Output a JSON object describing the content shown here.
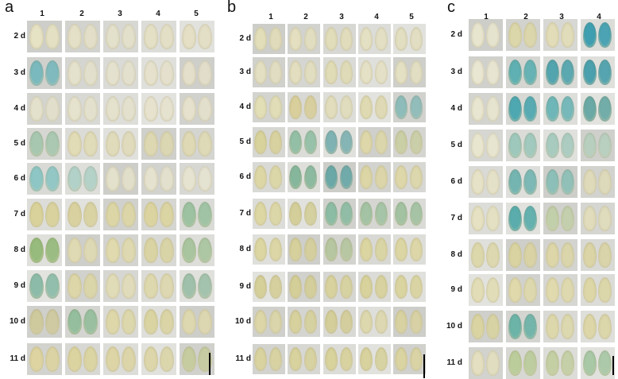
{
  "panels": [
    {
      "letter": "a",
      "columns": [
        "1",
        "2",
        "3",
        "4",
        "5"
      ],
      "rows": [
        "2 d",
        "3 d",
        "4 d",
        "5 d",
        "6 d",
        "7 d",
        "8 d",
        "9 d",
        "10 d",
        "11 d"
      ],
      "leaf_colors": [
        [
          "#e6e2c4",
          "#e4e0c8",
          "#e3e0cb",
          "#e4e0c6",
          "#e4dfc5"
        ],
        [
          "#7ab9bd",
          "#e4e1cc",
          "#e4e1ce",
          "#e5e1cc",
          "#e3dfcb"
        ],
        [
          "#e3e0cc",
          "#e5e2cd",
          "#e4e1cd",
          "#e6e2ce",
          "#e5e1cd"
        ],
        [
          "#a7c7b0",
          "#e1dbb6",
          "#e0dbbb",
          "#ddd8b2",
          "#dfdab5"
        ],
        [
          "#8dc6c4",
          "#b2d1c8",
          "#e3e0cb",
          "#e5e2cf",
          "#e6e3d1"
        ],
        [
          "#d9d29a",
          "#d9d2a0",
          "#dcd6a6",
          "#dcd4a0",
          "#9cc2a2"
        ],
        [
          "#96bb7c",
          "#e0dab4",
          "#e0daae",
          "#dad4a4",
          "#a9c5a0"
        ],
        [
          "#8cbca9",
          "#dcd6a8",
          "#e1dcb8",
          "#ded8ae",
          "#9fc1ab"
        ],
        [
          "#cfca9e",
          "#94be9d",
          "#ddd7aa",
          "#dad4a3",
          "#ded8b0"
        ],
        [
          "#ddd4a2",
          "#dcd4a0",
          "#ddd5a6",
          "#dcd6aa",
          "#c7cca0"
        ]
      ]
    },
    {
      "letter": "b",
      "columns": [
        "1",
        "2",
        "3",
        "4",
        "5"
      ],
      "rows": [
        "2 d",
        "3 d",
        "4 d",
        "5 d",
        "6 d",
        "7 d",
        "8 d",
        "9 d",
        "10 d",
        "11 d"
      ],
      "leaf_colors": [
        [
          "#e2deba",
          "#e3dfc0",
          "#e1ddbb",
          "#e4e0c4",
          "#e2dec1"
        ],
        [
          "#e3dfc2",
          "#e2debf",
          "#e0dcb6",
          "#e5e1c6",
          "#e4e0c4"
        ],
        [
          "#e2deb6",
          "#d9cf9c",
          "#e1ddbd",
          "#dfdab2",
          "#8dbcba"
        ],
        [
          "#d8d29c",
          "#93bfa6",
          "#7fb2b3",
          "#ddd7aa",
          "#cbcfa6"
        ],
        [
          "#ddd7a6",
          "#86b79c",
          "#6aa8a8",
          "#dcd6a6",
          "#ddd7aa"
        ],
        [
          "#ddd7a4",
          "#d4cf9a",
          "#8cbca4",
          "#a3c3a4",
          "#a2c2a2"
        ],
        [
          "#dcd6a2",
          "#d6d09c",
          "#b6c6a0",
          "#dbd5a2",
          "#dcd6a4"
        ],
        [
          "#d5cf9a",
          "#d4ce98",
          "#d8d29e",
          "#d8d29c",
          "#dad4a0"
        ],
        [
          "#dcd6a8",
          "#d7d19e",
          "#d4ce9a",
          "#ddd8ae",
          "#d8d2a2"
        ],
        [
          "#d9d3a0",
          "#d8d29e",
          "#d8d29c",
          "#d8d29e",
          "#dad4a2"
        ]
      ]
    },
    {
      "letter": "c",
      "columns": [
        "1",
        "2",
        "3",
        "4"
      ],
      "rows": [
        "2 d",
        "3 d",
        "4 d",
        "5 d",
        "6 d",
        "7 d",
        "8 d",
        "9 d",
        "10 d",
        "11 d"
      ],
      "leaf_colors": [
        [
          "#e8e5cf",
          "#dcd7aa",
          "#e2ddb8",
          "#3f9fb0"
        ],
        [
          "#e9e6d2",
          "#5eb0b2",
          "#52a4ae",
          "#4aa0ad"
        ],
        [
          "#e8e5d0",
          "#4ea8b1",
          "#6fb6b8",
          "#6aa9a5"
        ],
        [
          "#e9e6d0",
          "#9ec8bc",
          "#a8cbc0",
          "#b8cfbf"
        ],
        [
          "#e6e2c8",
          "#74b5b2",
          "#8cbfb8",
          "#dedaba"
        ],
        [
          "#e5e1c2",
          "#5aadac",
          "#c2cfab",
          "#e0dcbc"
        ],
        [
          "#ddd8ac",
          "#d9d3a2",
          "#dcd6a8",
          "#dad4a6"
        ],
        [
          "#e2ddb6",
          "#dfd9ac",
          "#e0daae",
          "#ddd7a8"
        ],
        [
          "#d9d4a2",
          "#6cb3a8",
          "#ddd8ac",
          "#dcd6a8"
        ],
        [
          "#e3dfc0",
          "#bccd9c",
          "#c4cfa4",
          "#a8c8a6"
        ]
      ]
    }
  ]
}
